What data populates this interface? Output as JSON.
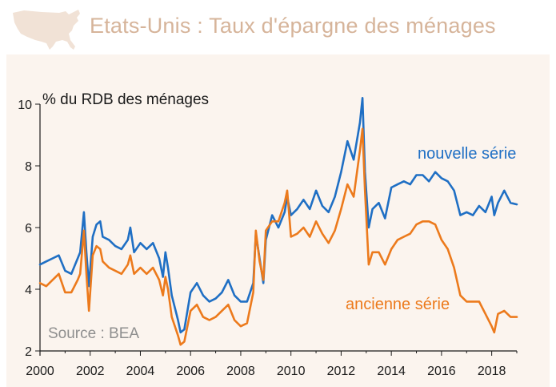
{
  "header": {
    "title": "Etats-Unis : Taux d'épargne des ménages",
    "icon": "usa-map-icon",
    "title_color": "#d6b49a",
    "icon_color": "#f1e2d6"
  },
  "chart_data": {
    "type": "line",
    "ylabel": "% du RDB des ménages",
    "source": "Source : BEA",
    "xlim": [
      2000,
      2019
    ],
    "ylim": [
      2,
      10
    ],
    "x_ticks": [
      2000,
      2002,
      2004,
      2006,
      2008,
      2010,
      2012,
      2014,
      2016,
      2018
    ],
    "y_ticks": [
      2,
      4,
      6,
      8,
      10
    ],
    "grid": false,
    "background": "#fbf4ee",
    "series": [
      {
        "name": "nouvelle série",
        "color": "#1f6fc4",
        "points": [
          [
            2000.0,
            4.8
          ],
          [
            2000.25,
            4.9
          ],
          [
            2000.5,
            5.0
          ],
          [
            2000.75,
            5.1
          ],
          [
            2001.0,
            4.6
          ],
          [
            2001.25,
            4.5
          ],
          [
            2001.5,
            5.0
          ],
          [
            2001.6,
            5.2
          ],
          [
            2001.75,
            6.5
          ],
          [
            2001.85,
            5.2
          ],
          [
            2001.95,
            4.1
          ],
          [
            2002.1,
            5.7
          ],
          [
            2002.25,
            6.1
          ],
          [
            2002.4,
            6.2
          ],
          [
            2002.5,
            5.7
          ],
          [
            2002.75,
            5.6
          ],
          [
            2003.0,
            5.4
          ],
          [
            2003.25,
            5.3
          ],
          [
            2003.5,
            5.6
          ],
          [
            2003.6,
            6.0
          ],
          [
            2003.75,
            5.2
          ],
          [
            2004.0,
            5.5
          ],
          [
            2004.25,
            5.3
          ],
          [
            2004.5,
            5.5
          ],
          [
            2004.75,
            5.0
          ],
          [
            2004.9,
            4.4
          ],
          [
            2005.0,
            5.2
          ],
          [
            2005.1,
            4.7
          ],
          [
            2005.25,
            3.8
          ],
          [
            2005.5,
            3.0
          ],
          [
            2005.6,
            2.6
          ],
          [
            2005.75,
            2.7
          ],
          [
            2006.0,
            3.9
          ],
          [
            2006.25,
            4.2
          ],
          [
            2006.5,
            3.8
          ],
          [
            2006.75,
            3.6
          ],
          [
            2007.0,
            3.7
          ],
          [
            2007.25,
            3.9
          ],
          [
            2007.5,
            4.3
          ],
          [
            2007.75,
            3.8
          ],
          [
            2008.0,
            3.6
          ],
          [
            2008.25,
            3.6
          ],
          [
            2008.5,
            4.2
          ],
          [
            2008.6,
            5.8
          ],
          [
            2008.75,
            5.0
          ],
          [
            2008.9,
            4.2
          ],
          [
            2009.0,
            5.6
          ],
          [
            2009.25,
            6.4
          ],
          [
            2009.5,
            6.0
          ],
          [
            2009.75,
            6.5
          ],
          [
            2009.85,
            7.0
          ],
          [
            2010.0,
            6.4
          ],
          [
            2010.25,
            6.6
          ],
          [
            2010.5,
            6.9
          ],
          [
            2010.75,
            6.6
          ],
          [
            2011.0,
            7.2
          ],
          [
            2011.25,
            6.7
          ],
          [
            2011.5,
            6.5
          ],
          [
            2011.75,
            7.0
          ],
          [
            2012.0,
            7.8
          ],
          [
            2012.25,
            8.8
          ],
          [
            2012.5,
            8.2
          ],
          [
            2012.75,
            9.4
          ],
          [
            2012.85,
            10.2
          ],
          [
            2012.95,
            7.8
          ],
          [
            2013.1,
            6.0
          ],
          [
            2013.25,
            6.6
          ],
          [
            2013.5,
            6.8
          ],
          [
            2013.75,
            6.3
          ],
          [
            2014.0,
            7.3
          ],
          [
            2014.25,
            7.4
          ],
          [
            2014.5,
            7.5
          ],
          [
            2014.75,
            7.4
          ],
          [
            2015.0,
            7.7
          ],
          [
            2015.25,
            7.7
          ],
          [
            2015.5,
            7.5
          ],
          [
            2015.75,
            7.8
          ],
          [
            2016.0,
            7.6
          ],
          [
            2016.25,
            7.5
          ],
          [
            2016.5,
            7.2
          ],
          [
            2016.75,
            6.4
          ],
          [
            2017.0,
            6.5
          ],
          [
            2017.25,
            6.4
          ],
          [
            2017.5,
            6.7
          ],
          [
            2017.75,
            6.5
          ],
          [
            2018.0,
            7.0
          ],
          [
            2018.1,
            6.4
          ],
          [
            2018.25,
            6.8
          ],
          [
            2018.5,
            7.2
          ],
          [
            2018.75,
            6.8
          ],
          [
            2019.0,
            6.75
          ]
        ]
      },
      {
        "name": "ancienne série",
        "color": "#ec7a1c",
        "points": [
          [
            2000.0,
            4.2
          ],
          [
            2000.25,
            4.1
          ],
          [
            2000.5,
            4.3
          ],
          [
            2000.75,
            4.5
          ],
          [
            2001.0,
            3.9
          ],
          [
            2001.25,
            3.9
          ],
          [
            2001.5,
            4.3
          ],
          [
            2001.6,
            4.5
          ],
          [
            2001.75,
            5.9
          ],
          [
            2001.85,
            4.5
          ],
          [
            2001.95,
            3.3
          ],
          [
            2002.1,
            5.1
          ],
          [
            2002.25,
            5.4
          ],
          [
            2002.4,
            5.3
          ],
          [
            2002.5,
            4.9
          ],
          [
            2002.75,
            4.7
          ],
          [
            2003.0,
            4.6
          ],
          [
            2003.25,
            4.5
          ],
          [
            2003.5,
            4.8
          ],
          [
            2003.6,
            5.1
          ],
          [
            2003.75,
            4.5
          ],
          [
            2004.0,
            4.7
          ],
          [
            2004.25,
            4.5
          ],
          [
            2004.5,
            4.7
          ],
          [
            2004.75,
            4.3
          ],
          [
            2004.9,
            3.8
          ],
          [
            2005.0,
            4.4
          ],
          [
            2005.1,
            4.0
          ],
          [
            2005.25,
            3.1
          ],
          [
            2005.5,
            2.5
          ],
          [
            2005.6,
            2.2
          ],
          [
            2005.75,
            2.3
          ],
          [
            2006.0,
            3.3
          ],
          [
            2006.25,
            3.5
          ],
          [
            2006.5,
            3.1
          ],
          [
            2006.75,
            3.0
          ],
          [
            2007.0,
            3.1
          ],
          [
            2007.25,
            3.3
          ],
          [
            2007.5,
            3.5
          ],
          [
            2007.75,
            3.0
          ],
          [
            2008.0,
            2.8
          ],
          [
            2008.25,
            2.9
          ],
          [
            2008.5,
            3.9
          ],
          [
            2008.6,
            5.9
          ],
          [
            2008.75,
            4.9
          ],
          [
            2008.9,
            4.3
          ],
          [
            2009.0,
            5.9
          ],
          [
            2009.25,
            6.2
          ],
          [
            2009.5,
            6.2
          ],
          [
            2009.75,
            6.8
          ],
          [
            2009.85,
            7.2
          ],
          [
            2010.0,
            5.7
          ],
          [
            2010.25,
            5.8
          ],
          [
            2010.5,
            6.0
          ],
          [
            2010.75,
            5.7
          ],
          [
            2011.0,
            6.2
          ],
          [
            2011.25,
            5.8
          ],
          [
            2011.5,
            5.5
          ],
          [
            2011.75,
            5.9
          ],
          [
            2012.0,
            6.6
          ],
          [
            2012.25,
            7.4
          ],
          [
            2012.5,
            7.0
          ],
          [
            2012.75,
            8.5
          ],
          [
            2012.85,
            9.2
          ],
          [
            2012.95,
            7.2
          ],
          [
            2013.1,
            4.8
          ],
          [
            2013.25,
            5.2
          ],
          [
            2013.5,
            5.2
          ],
          [
            2013.75,
            4.8
          ],
          [
            2014.0,
            5.3
          ],
          [
            2014.25,
            5.6
          ],
          [
            2014.5,
            5.7
          ],
          [
            2014.75,
            5.8
          ],
          [
            2015.0,
            6.1
          ],
          [
            2015.25,
            6.2
          ],
          [
            2015.5,
            6.2
          ],
          [
            2015.75,
            6.1
          ],
          [
            2016.0,
            5.6
          ],
          [
            2016.25,
            5.3
          ],
          [
            2016.5,
            4.7
          ],
          [
            2016.75,
            3.8
          ],
          [
            2017.0,
            3.6
          ],
          [
            2017.25,
            3.6
          ],
          [
            2017.5,
            3.6
          ],
          [
            2017.75,
            3.2
          ],
          [
            2018.0,
            2.8
          ],
          [
            2018.1,
            2.6
          ],
          [
            2018.25,
            3.2
          ],
          [
            2018.5,
            3.3
          ],
          [
            2018.75,
            3.1
          ],
          [
            2019.0,
            3.1
          ]
        ]
      }
    ]
  }
}
